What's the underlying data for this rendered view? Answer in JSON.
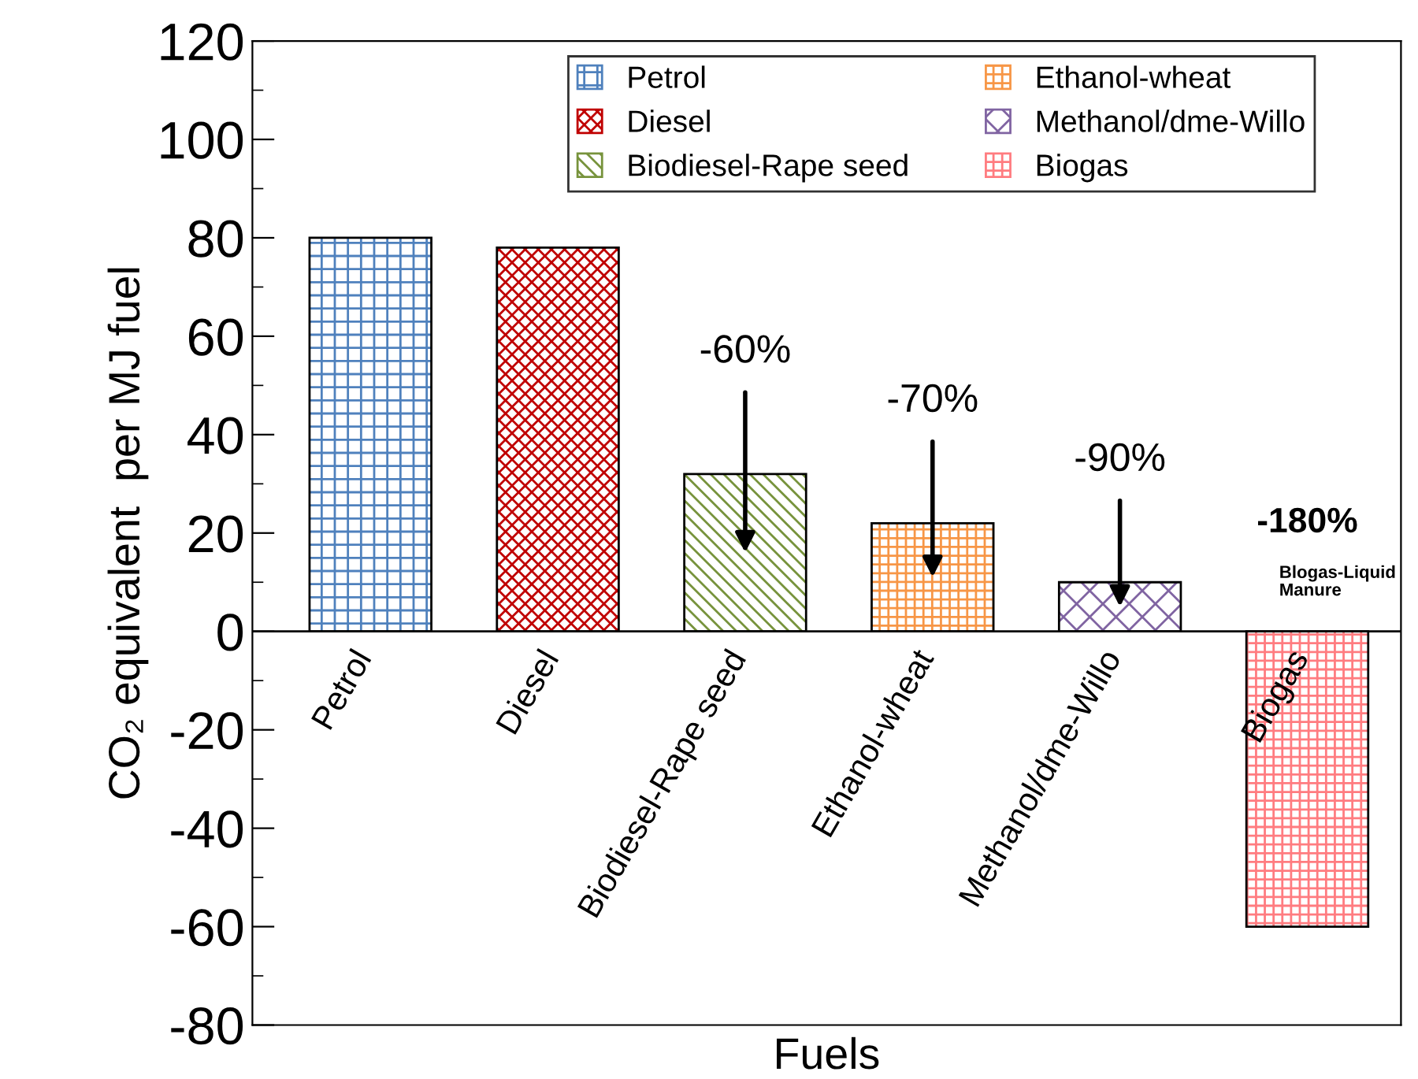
{
  "chart_data": {
    "type": "bar",
    "categories": [
      "Petrol",
      "Diesel",
      "Biodiesel-Rape seed",
      "Ethanol-wheat",
      "Methanol/dme-Willo",
      "Biogas"
    ],
    "series": [
      {
        "name": "Petrol",
        "color": "#4f81bd",
        "values": [
          80,
          null,
          null,
          null,
          null,
          null
        ]
      },
      {
        "name": "Diesel",
        "color": "#c00000",
        "values": [
          null,
          78,
          null,
          null,
          null,
          null
        ]
      },
      {
        "name": "Biodiesel-Rape seed",
        "color": "#77933c",
        "values": [
          null,
          null,
          32,
          null,
          null,
          null
        ]
      },
      {
        "name": "Ethanol-wheat",
        "color": "#f79646",
        "values": [
          null,
          null,
          null,
          22,
          null,
          null
        ]
      },
      {
        "name": "Methanol/dme-Willo",
        "color": "#8064a2",
        "values": [
          null,
          null,
          null,
          null,
          10,
          null
        ]
      },
      {
        "name": "Biogas",
        "color": "#ff7c80",
        "values": [
          null,
          null,
          null,
          null,
          null,
          -60
        ]
      }
    ],
    "xlabel": "Fuels",
    "ylabel": "CO₂ equivalent  per MJ fuel",
    "ylim": [
      -80,
      120
    ],
    "yticks": [
      -80,
      -60,
      -40,
      -20,
      0,
      20,
      40,
      60,
      80,
      100,
      120
    ],
    "annotations": [
      "-60%",
      "-70%",
      "-90%",
      "-180%",
      "Blogas-Liquid\nManure"
    ],
    "legend": "top",
    "grid": false
  }
}
